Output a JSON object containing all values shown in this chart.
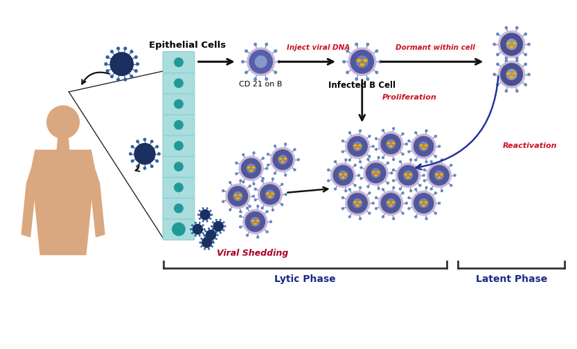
{
  "background_color": "#ffffff",
  "figure_width": 8.33,
  "figure_height": 5.06,
  "labels": {
    "epithelial_cells": "Epithelial Cells",
    "cd21": "CD 21 on B",
    "infected_b": "Infected B Cell",
    "inject_dna": "Inject viral DNA",
    "dormant": "Dormant within cell",
    "proliferation": "Proliferation",
    "reactivation": "Reactivation",
    "viral_shedding": "Viral Shedding",
    "lytic_phase": "Lytic Phase",
    "latent_phase": "Latent Phase"
  },
  "colors": {
    "body_fill": "#daa880",
    "cell_fill": "#aadddd",
    "cell_edge": "#88cccc",
    "nucleus_fill": "#229999",
    "b_cell_outer": "#c8b8dc",
    "b_cell_inner": "#5560a8",
    "b_cell_spikes": "#6688bb",
    "b_cell_nucleus": "#8898c8",
    "infected_inner": "#5058a0",
    "dna_yellow": "#e8b800",
    "virus_dark": "#1a3060",
    "virus_spikes": "#3060a0",
    "arrow_dark": "#111111",
    "arrow_blue": "#223399",
    "red_label": "#cc1122",
    "dark_red_label": "#aa0022",
    "dark_blue_label": "#1a2a88",
    "bracket_color": "#333333"
  }
}
